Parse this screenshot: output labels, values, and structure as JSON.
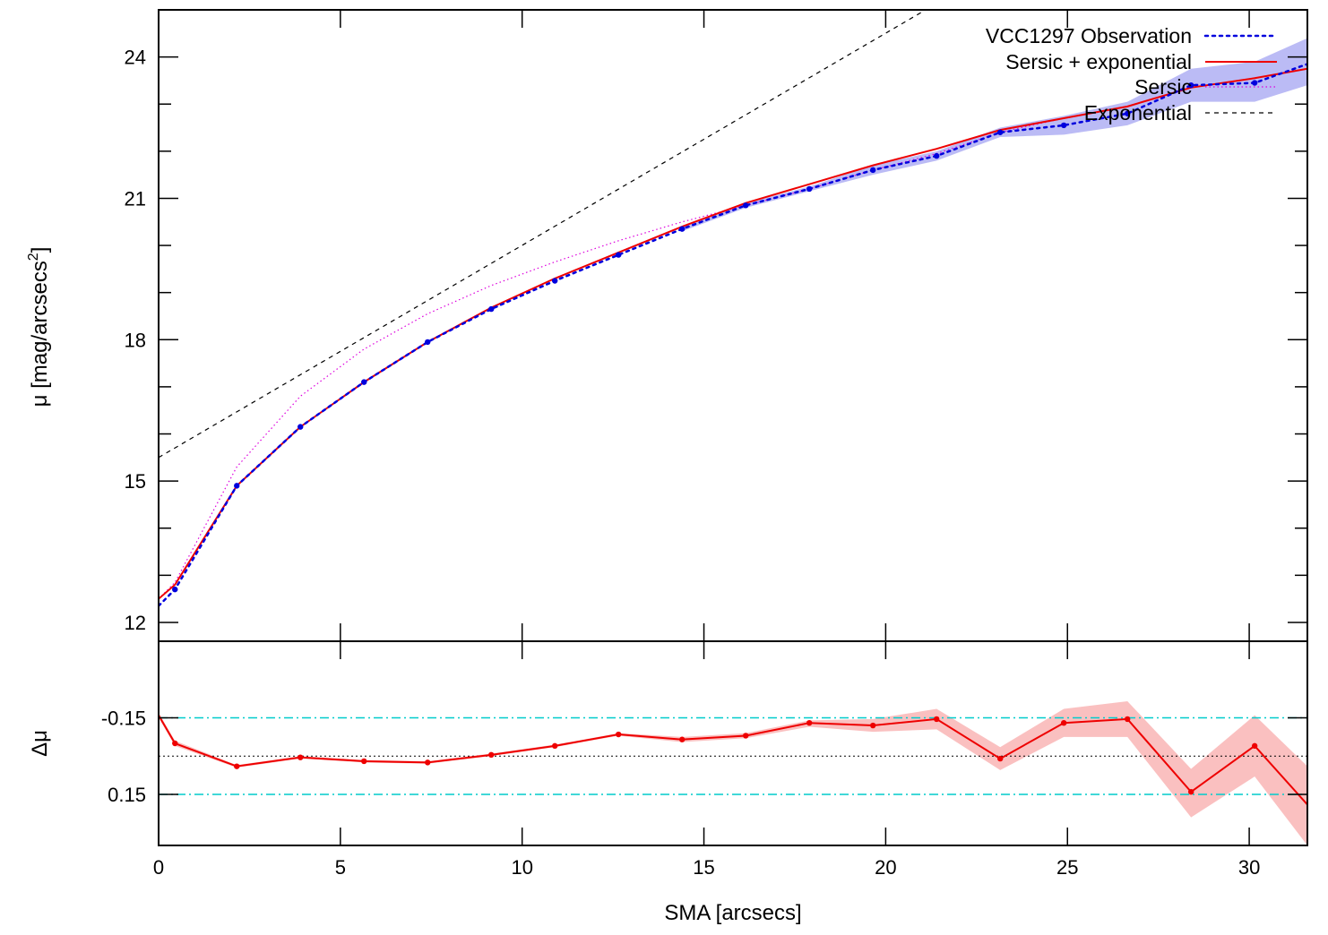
{
  "chart_data": [
    {
      "type": "line",
      "panel": "main",
      "ylabel": "μ [mag/arcsecs",
      "ylabel_sup": "2",
      "ylabel_close": "]",
      "xlim": [
        0,
        31.6
      ],
      "ylim": [
        25.0,
        11.6
      ],
      "y_inverted": true,
      "yticks": [
        12,
        15,
        18,
        21,
        24
      ],
      "ytick_labels": [
        "12",
        "15",
        "18",
        "21",
        "24"
      ],
      "legend_position": "top-right",
      "series": [
        {
          "name": "VCC1297 Observation",
          "style": "dotted",
          "color": "#0000dd",
          "x": [
            0.0,
            0.45,
            2.15,
            3.9,
            5.65,
            7.4,
            9.15,
            10.9,
            12.65,
            14.4,
            16.15,
            17.9,
            19.65,
            21.4,
            23.15,
            24.9,
            26.65,
            28.4,
            30.15,
            31.6
          ],
          "y": [
            12.35,
            12.7,
            14.9,
            16.15,
            17.1,
            17.95,
            18.65,
            19.25,
            19.8,
            20.35,
            20.85,
            21.2,
            21.6,
            21.9,
            22.4,
            22.55,
            22.8,
            23.4,
            23.45,
            23.85
          ],
          "err_low": [
            null,
            null,
            null,
            null,
            null,
            null,
            null,
            null,
            null,
            20.3,
            20.8,
            21.15,
            21.5,
            21.8,
            22.3,
            22.35,
            22.55,
            23.05,
            23.05,
            23.4
          ],
          "err_high": [
            null,
            null,
            null,
            null,
            null,
            null,
            null,
            null,
            null,
            20.4,
            20.9,
            21.25,
            21.7,
            22.0,
            22.5,
            22.75,
            23.05,
            23.75,
            23.9,
            24.4
          ],
          "markers": true
        },
        {
          "name": "Sersic + exponential",
          "style": "solid",
          "color": "#ee0000",
          "x": [
            0.0,
            0.45,
            2.15,
            3.9,
            5.65,
            7.4,
            9.15,
            10.9,
            12.65,
            14.4,
            16.15,
            17.9,
            19.65,
            21.4,
            23.15,
            24.9,
            26.65,
            28.4,
            30.15,
            31.6
          ],
          "y": [
            12.5,
            12.8,
            14.9,
            16.15,
            17.1,
            17.95,
            18.68,
            19.3,
            19.85,
            20.4,
            20.9,
            21.3,
            21.7,
            22.05,
            22.45,
            22.7,
            22.95,
            23.35,
            23.55,
            23.75
          ]
        },
        {
          "name": "Sersic",
          "style": "dotted-thin",
          "color": "#dd00dd",
          "x": [
            0.0,
            0.45,
            2.15,
            3.9,
            5.65,
            7.4,
            9.15,
            10.9,
            12.65,
            14.4,
            16.15,
            17.9,
            19.65,
            21.4,
            23.15,
            24.9,
            26.65,
            28.4,
            30.15,
            31.6
          ],
          "y": [
            12.5,
            12.85,
            15.3,
            16.8,
            17.8,
            18.55,
            19.15,
            19.65,
            20.1,
            20.5,
            20.85,
            21.2,
            21.6,
            21.95,
            22.4,
            22.7,
            22.95,
            23.35,
            23.55,
            23.75
          ]
        },
        {
          "name": "Exponential",
          "style": "dashed",
          "color": "#000000",
          "x": [
            0.0,
            21.1
          ],
          "y": [
            15.5,
            25.0
          ]
        }
      ]
    },
    {
      "type": "line",
      "panel": "residual",
      "xlabel": "SMA [arcsecs]",
      "ylabel": "Δμ",
      "xlim": [
        0,
        31.6
      ],
      "ylim": [
        -0.45,
        0.35
      ],
      "xticks": [
        0,
        5,
        10,
        15,
        20,
        25,
        30
      ],
      "xtick_labels": [
        "0",
        "5",
        "10",
        "15",
        "20",
        "25",
        "30"
      ],
      "yticks": [
        0.15,
        -0.15
      ],
      "ytick_labels": [
        "0.15",
        "-0.15"
      ],
      "reference_lines": [
        {
          "y": 0.15,
          "style": "dash-dot",
          "color": "#00cccc"
        },
        {
          "y": -0.15,
          "style": "dash-dot",
          "color": "#00cccc"
        },
        {
          "y": 0.0,
          "style": "dotted",
          "color": "#000000"
        }
      ],
      "series": [
        {
          "style": "solid",
          "color": "#ee0000",
          "x": [
            0.0,
            0.45,
            2.15,
            3.9,
            5.65,
            7.4,
            9.15,
            10.9,
            12.65,
            14.4,
            16.15,
            17.9,
            19.65,
            21.4,
            23.15,
            24.9,
            26.65,
            28.4,
            30.15,
            31.6
          ],
          "y": [
            -0.16,
            -0.05,
            0.04,
            0.005,
            0.02,
            0.025,
            -0.005,
            -0.04,
            -0.085,
            -0.065,
            -0.08,
            -0.13,
            -0.12,
            -0.145,
            0.01,
            -0.13,
            -0.145,
            0.14,
            -0.04,
            0.19
          ],
          "err_low": [
            -0.17,
            -0.06,
            0.035,
            0.0,
            0.015,
            0.02,
            -0.01,
            -0.045,
            -0.09,
            -0.075,
            -0.09,
            -0.14,
            -0.145,
            -0.185,
            -0.035,
            -0.185,
            -0.215,
            0.05,
            -0.16,
            0.04
          ],
          "err_high": [
            -0.15,
            -0.04,
            0.045,
            0.01,
            0.025,
            0.03,
            0.0,
            -0.035,
            -0.08,
            -0.055,
            -0.07,
            -0.115,
            -0.095,
            -0.105,
            0.055,
            -0.075,
            -0.075,
            0.24,
            0.08,
            0.35
          ],
          "markers": true
        }
      ]
    }
  ]
}
